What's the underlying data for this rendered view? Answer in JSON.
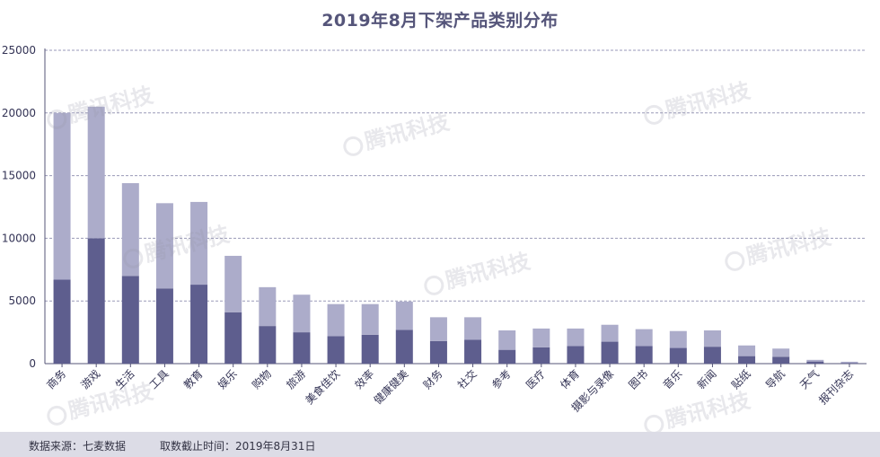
{
  "chart_data": {
    "type": "bar",
    "stacked": true,
    "title": "2019年8月下架产品类别分布",
    "xlabel": "",
    "ylabel": "",
    "ylim": [
      0,
      25000
    ],
    "yticks": [
      "0",
      "5000",
      "10000",
      "15000",
      "20000",
      "25000"
    ],
    "grid": true,
    "categories": [
      "商务",
      "游戏",
      "生活",
      "工具",
      "教育",
      "娱乐",
      "购物",
      "旅游",
      "美食佳饮",
      "效率",
      "健康健美",
      "财务",
      "社交",
      "参考",
      "医疗",
      "体育",
      "摄影与录像",
      "图书",
      "音乐",
      "新闻",
      "贴纸",
      "导航",
      "天气",
      "报刊杂志"
    ],
    "series": [
      {
        "values": [
          6700,
          10000,
          7000,
          6000,
          6300,
          4100,
          3000,
          2500,
          2200,
          2300,
          2700,
          1800,
          1900,
          1100,
          1300,
          1400,
          1750,
          1400,
          1250,
          1350,
          600,
          550,
          170,
          60
        ]
      },
      {
        "values": [
          13300,
          10500,
          7400,
          6800,
          6600,
          4500,
          3100,
          3000,
          2550,
          2450,
          2250,
          1900,
          1800,
          1550,
          1500,
          1400,
          1350,
          1350,
          1350,
          1300,
          850,
          650,
          130,
          90
        ]
      }
    ],
    "colors": {
      "bottom": "#5e5e8e",
      "top": "#acacca",
      "axis": "#555577",
      "grid": "#9a9ab8",
      "text": "#333355"
    }
  },
  "footer": {
    "source": "数据来源：七麦数据",
    "cutoff": "取数截止时间：2019年8月31日"
  },
  "watermark": {
    "text": "腾讯科技"
  }
}
